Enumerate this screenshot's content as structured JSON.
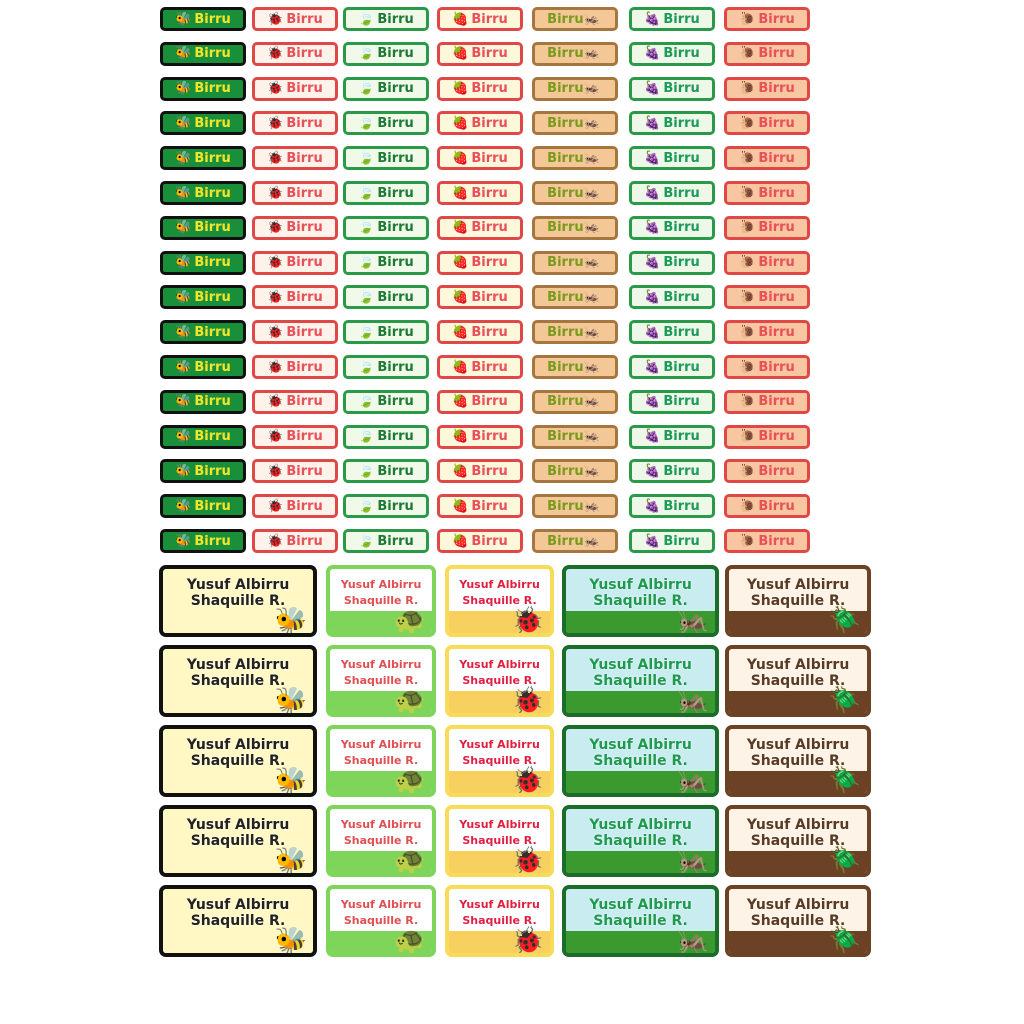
{
  "small_labels": {
    "text": "Birru",
    "rows": 16,
    "styles": [
      {
        "theme": "bee",
        "bg": "#1a8f3a",
        "border": "#111111",
        "color": "#f5e52a",
        "icon": "bee-icon",
        "glyph": "🐝"
      },
      {
        "theme": "ladybug",
        "bg": "#fdf3ea",
        "border": "#e04848",
        "color": "#e8505a",
        "icon": "ladybug-icon",
        "glyph": "🐞"
      },
      {
        "theme": "leaf-ladybug",
        "bg": "#f1fae9",
        "border": "#2a9a48",
        "color": "#1d7a36",
        "icon": "leaf-icon",
        "glyph": "🍃"
      },
      {
        "theme": "strawberry",
        "bg": "#fdf7dc",
        "border": "#e04848",
        "color": "#e8505a",
        "icon": "strawberry-icon",
        "glyph": "🍓"
      },
      {
        "theme": "grasshopper",
        "bg": "#f3c896",
        "border": "#a5763f",
        "color": "#7a9a1e",
        "icon": "grasshopper-icon",
        "glyph": "🦗"
      },
      {
        "theme": "raspberry",
        "bg": "#eef8e9",
        "border": "#2a9a48",
        "color": "#1d9a5a",
        "icon": "raspberry-icon",
        "glyph": "🍇"
      },
      {
        "theme": "snail",
        "bg": "#f8c6a0",
        "border": "#e04848",
        "color": "#e8505a",
        "icon": "snail-icon",
        "glyph": "🐌"
      }
    ]
  },
  "big_labels": {
    "line1": "Yusuf Albirru",
    "line2": "Shaquille R.",
    "rows": 5,
    "styles": [
      {
        "theme": "bee",
        "bg": "#fff8c4",
        "border": "#111111",
        "color": "#222222",
        "ground": "#fff8c4",
        "icon": "bee-icon",
        "glyph": "🐝"
      },
      {
        "theme": "turtle-ant",
        "bg": "#ffffff",
        "border": "#7fd45a",
        "color": "#e05050",
        "ground": "#7fd45a",
        "icon": "turtle-icon",
        "glyph": "🐢"
      },
      {
        "theme": "ladybug-flowers",
        "bg": "#ffffff",
        "border": "#f7dc5a",
        "color": "#e02040",
        "ground": "#f8d060",
        "icon": "ladybug-icon",
        "glyph": "🐞"
      },
      {
        "theme": "grasshopper-grass",
        "bg": "#c8ecf0",
        "border": "#1b6e2a",
        "color": "#1d9a50",
        "ground": "#3a9a30",
        "icon": "grasshopper-icon",
        "glyph": "🦗"
      },
      {
        "theme": "beetle",
        "bg": "#fdf3e6",
        "border": "#6b4226",
        "color": "#5a3a22",
        "ground": "#6b4226",
        "icon": "beetle-icon",
        "glyph": "🪲"
      }
    ]
  }
}
